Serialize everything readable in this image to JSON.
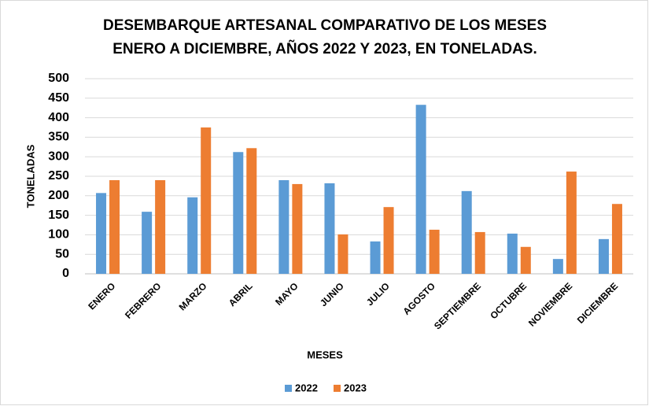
{
  "chart_data": {
    "type": "bar",
    "title": [
      "DESEMBARQUE ARTESANAL COMPARATIVO DE LOS MESES",
      "ENERO A DICIEMBRE, AÑOS 2022 Y 2023, EN TONELADAS."
    ],
    "x_label": "MESES",
    "y_label": "TONELADAS",
    "categories": [
      "ENERO",
      "FEBRERO",
      "MARZO",
      "ABRIL",
      "MAYO",
      "JUNIO",
      "JULIO",
      "AGOSTO",
      "SEPTIEMBRE",
      "OCTUBRE",
      "NOVIEMBRE",
      "DICIEMBRE"
    ],
    "series": [
      {
        "name": "2022",
        "color": "#5b9bd5",
        "values": [
          207,
          159,
          196,
          312,
          240,
          232,
          83,
          433,
          212,
          103,
          38,
          89
        ]
      },
      {
        "name": "2023",
        "color": "#ed7d31",
        "values": [
          240,
          240,
          375,
          322,
          230,
          101,
          171,
          113,
          107,
          69,
          262,
          179
        ]
      }
    ],
    "ylim": [
      0,
      500
    ],
    "yticks": [
      0,
      50,
      100,
      150,
      200,
      250,
      300,
      350,
      400,
      450,
      500
    ],
    "grid": true,
    "legend": "bottom"
  }
}
